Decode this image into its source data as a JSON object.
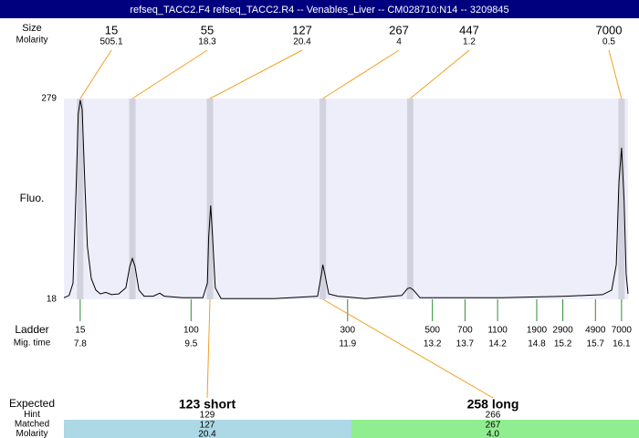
{
  "chart_data": {
    "type": "line",
    "title": "refseq_TACC2.F4  refseq_TACC2.R4 -- Venables_Liver -- CM028710:N14 -- 3209845",
    "y_label": "Fluo.",
    "xlim": [
      7.55,
      16.2
    ],
    "ylim": [
      18,
      279
    ],
    "yticks": [
      18,
      279
    ],
    "x": [
      7.55,
      7.63,
      7.69,
      7.74,
      7.77,
      7.8,
      7.83,
      7.87,
      7.91,
      7.97,
      8.04,
      8.11,
      8.19,
      8.28,
      8.39,
      8.5,
      8.56,
      8.6,
      8.64,
      8.7,
      8.78,
      8.92,
      9.02,
      9.09,
      9.37,
      9.68,
      9.75,
      9.77,
      9.8,
      9.83,
      9.87,
      9.96,
      10.77,
      11.44,
      11.5,
      11.52,
      11.55,
      11.61,
      11.75,
      12.17,
      12.73,
      12.82,
      12.86,
      12.91,
      13.01,
      14.27,
      15.25,
      15.81,
      15.95,
      16.02,
      16.06,
      16.1,
      16.14,
      16.17,
      16.2
    ],
    "series": [
      {
        "color": "#000000",
        "values": [
          20,
          23,
          39,
          170,
          259,
          277,
          265,
          170,
          87,
          45,
          30,
          25,
          27,
          24,
          25,
          33,
          61,
          71,
          61,
          30,
          22,
          22,
          26,
          22,
          20,
          20,
          39,
          99,
          140,
          99,
          33,
          19,
          19,
          22,
          51,
          63,
          51,
          25,
          22,
          19,
          23,
          32,
          33,
          30,
          20,
          20,
          22,
          24,
          30,
          63,
          170,
          215,
          146,
          51,
          25
        ]
      }
    ],
    "peaks": {
      "row_labels": [
        "Size",
        "Molarity"
      ],
      "times": [
        7.8,
        8.6,
        9.79,
        11.52,
        12.86,
        16.1
      ],
      "sizes": [
        15,
        55,
        127,
        267,
        447,
        7000
      ],
      "molarity": [
        505.1,
        18.3,
        20.4,
        4,
        1.2,
        0.5
      ]
    },
    "ladder": {
      "row_labels": [
        "Ladder",
        "Mig. time"
      ],
      "sizes": [
        15,
        100,
        300,
        500,
        700,
        1100,
        1900,
        2900,
        4900,
        7000
      ],
      "times": [
        7.8,
        9.5,
        11.9,
        13.2,
        13.7,
        14.2,
        14.8,
        15.2,
        15.7,
        16.1
      ]
    },
    "expected": {
      "row_labels": [
        "Expected",
        "Hint",
        "Matched",
        "Molarity"
      ],
      "labels": [
        "123 short",
        "258 long"
      ],
      "hint": [
        129,
        266
      ],
      "matched": [
        127,
        267
      ],
      "molarity": [
        20.4,
        4.0
      ],
      "molarity_value_labels": [
        "20.4",
        "4.0"
      ],
      "colors": [
        "#add8e6",
        "#90ee90"
      ]
    }
  }
}
